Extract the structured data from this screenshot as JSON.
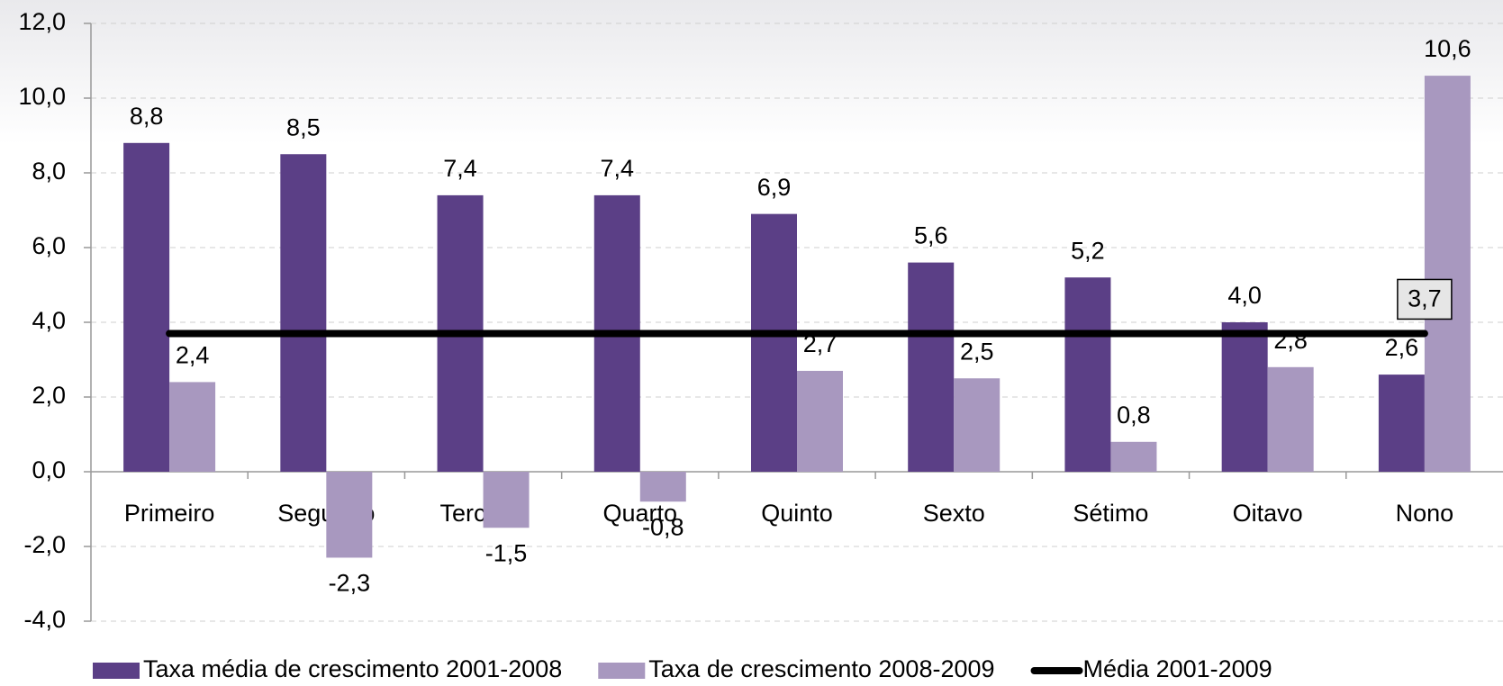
{
  "chart_data": {
    "type": "bar",
    "categories": [
      "Primeiro",
      "Segundo",
      "Terceiro",
      "Quarto",
      "Quinto",
      "Sexto",
      "Sétimo",
      "Oitavo",
      "Nono"
    ],
    "series": [
      {
        "name": "Taxa média de crescimento 2001-2008",
        "color": "#5b3f86",
        "type": "bar",
        "values": [
          8.8,
          8.5,
          7.4,
          7.4,
          6.9,
          5.6,
          5.2,
          4.0,
          2.6
        ],
        "value_labels": [
          "8,8",
          "8,5",
          "7,4",
          "7,4",
          "6,9",
          "5,6",
          "5,2",
          "4,0",
          "2,6"
        ]
      },
      {
        "name": "Taxa de crescimento 2008-2009",
        "color": "#a898bf",
        "type": "bar",
        "values": [
          2.4,
          -2.3,
          -1.5,
          -0.8,
          2.7,
          2.5,
          0.8,
          2.8,
          10.6
        ],
        "value_labels": [
          "2,4",
          "-2,3",
          "-1,5",
          "-0,8",
          "2,7",
          "2,5",
          "0,8",
          "2,8",
          "10,6"
        ]
      },
      {
        "name": "Média 2001-2009",
        "color": "#000000",
        "type": "line",
        "values": [
          3.7,
          3.7,
          3.7,
          3.7,
          3.7,
          3.7,
          3.7,
          3.7,
          3.7
        ],
        "value_labels": [
          null,
          null,
          null,
          null,
          null,
          null,
          null,
          null,
          "3,7"
        ]
      }
    ],
    "ylim": [
      -4,
      12
    ],
    "yticks": [
      {
        "value": -4,
        "label": "-4,0"
      },
      {
        "value": -2,
        "label": "-2,0"
      },
      {
        "value": 0,
        "label": "0,0"
      },
      {
        "value": 2,
        "label": "2,0"
      },
      {
        "value": 4,
        "label": "4,0"
      },
      {
        "value": 6,
        "label": "6,0"
      },
      {
        "value": 8,
        "label": "8,0"
      },
      {
        "value": 10,
        "label": "10,0"
      },
      {
        "value": 12,
        "label": "12,0"
      }
    ],
    "grid": true,
    "legend": "bottom"
  }
}
